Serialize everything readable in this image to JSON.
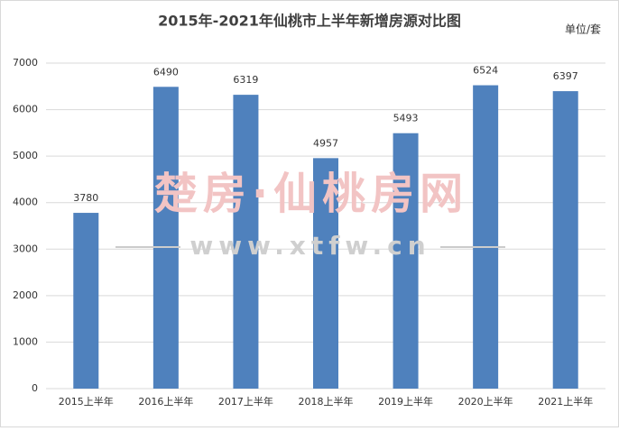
{
  "chart_data": {
    "type": "bar",
    "title": "2015年-2021年仙桃市上半年新增房源对比图",
    "unit_label": "单位/套",
    "categories": [
      "2015上半年",
      "2016上半年",
      "2017上半年",
      "2018上半年",
      "2019上半年",
      "2020上半年",
      "2021上半年"
    ],
    "values": [
      3780,
      6490,
      6319,
      4957,
      5493,
      6524,
      6397
    ],
    "color": "#4f81bd",
    "ylim": [
      0,
      7000
    ],
    "yticks": [
      0,
      1000,
      2000,
      3000,
      4000,
      5000,
      6000,
      7000
    ],
    "grid": true,
    "watermark": {
      "brand": "楚房·仙桃房网",
      "url": "www.xtfw.cn"
    }
  }
}
